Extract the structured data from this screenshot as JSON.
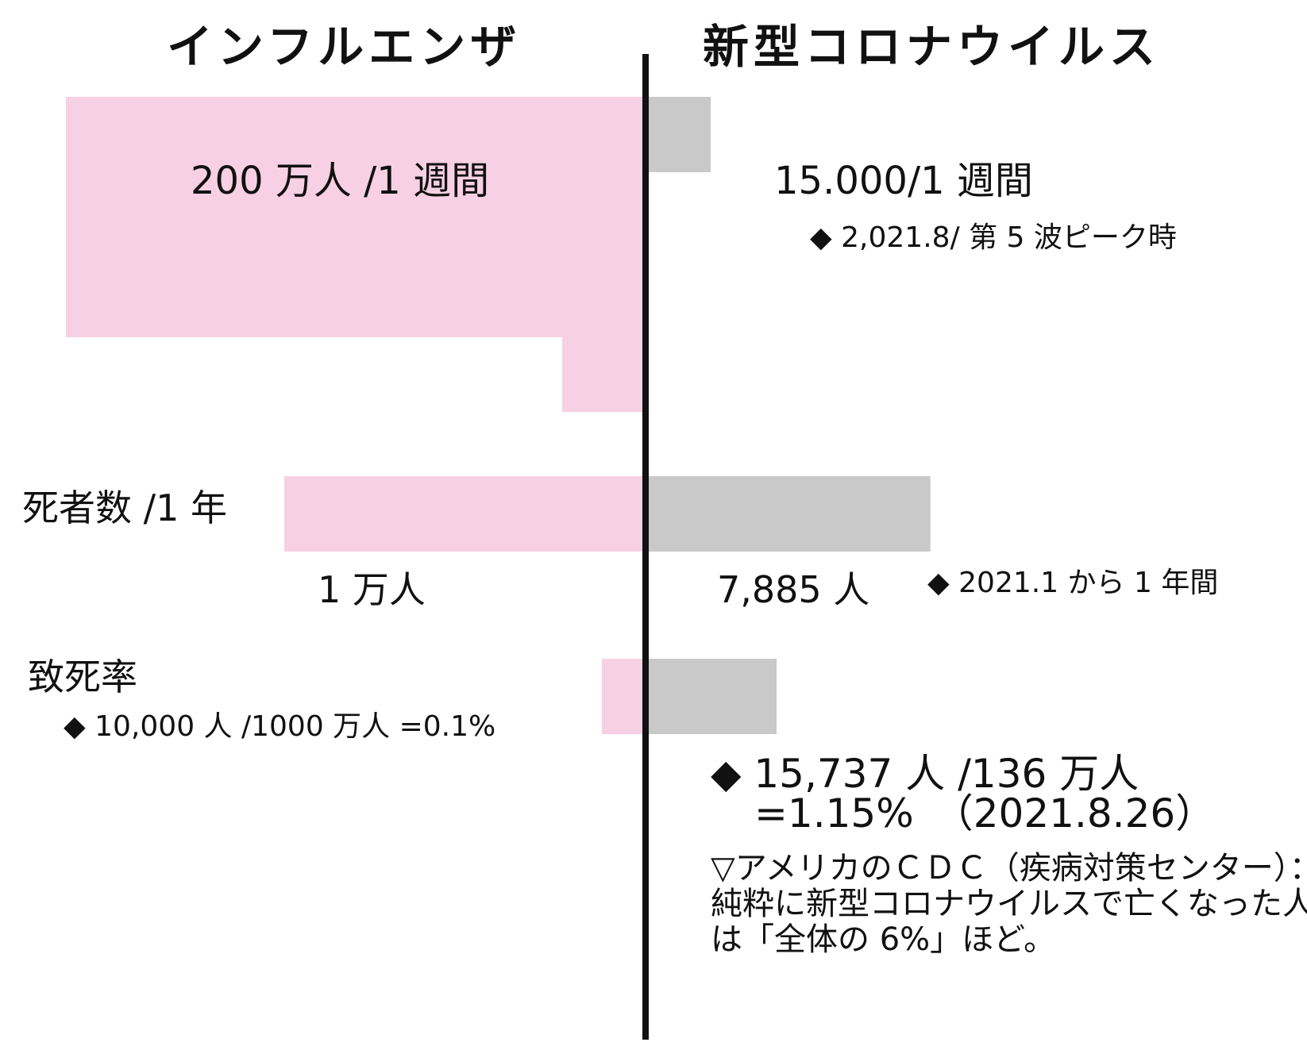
{
  "chart_data": {
    "type": "bar",
    "layout": "butterfly",
    "left_header": "インフルエンザ",
    "right_header": "新型コロナウイルス",
    "colors": {
      "left": "#f8d0e3",
      "right": "#c8c9c8",
      "axis": "#111111"
    },
    "rows": [
      {
        "label": "",
        "left_value": 2000000,
        "right_value": 15000,
        "left_text": "200 万人 /1 週間",
        "right_text": "15.000/1 週間",
        "right_note": "◆ 2,021.8/ 第 5 波ピーク時"
      },
      {
        "label": "死者数 /1 年",
        "left_value": 10000,
        "right_value": 7885,
        "left_text": "1 万人",
        "right_text": "7,885 人",
        "right_note": "◆ 2021.1 から 1 年間"
      },
      {
        "label": "致死率",
        "left_value": 0.1,
        "right_value": 1.15,
        "left_note": "◆ 10,000 人 /1000 万人 =0.1%",
        "right_text_line1": "◆ 15,737 人 /136 万人",
        "right_text_line2": "=1.15%　（2021.8.26）"
      }
    ]
  },
  "footnote": "▽アメリカのＣＤＣ（疾病対策センター）：純粋に新型コロナウイルスで亡くなった人は「全体の 6%」ほど。"
}
